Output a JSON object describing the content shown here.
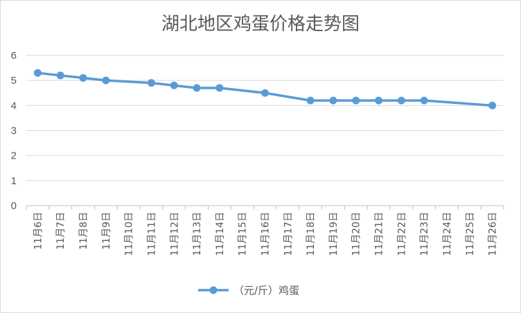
{
  "chart_data": {
    "type": "line",
    "title": "湖北地区鸡蛋价格走势图",
    "xlabel": "",
    "ylabel": "",
    "ylim": [
      0,
      6
    ],
    "yticks": [
      "0",
      "1",
      "2",
      "3",
      "4",
      "5",
      "6"
    ],
    "grid": true,
    "legend_position": "bottom",
    "categories": [
      "11月6日",
      "11月7日",
      "11月8日",
      "11月9日",
      "11月10日",
      "11月11日",
      "11月12日",
      "11月13日",
      "11月14日",
      "11月15日",
      "11月16日",
      "11月17日",
      "11月18日",
      "11月19日",
      "11月20日",
      "11月21日",
      "11月22日",
      "11月23日",
      "11月24日",
      "11月25日",
      "11月26日"
    ],
    "series": [
      {
        "name": "（元/斤）鸡蛋",
        "color": "#5b9bd5",
        "values": [
          5.3,
          5.2,
          5.1,
          5.0,
          null,
          4.9,
          4.8,
          4.7,
          4.7,
          null,
          4.5,
          null,
          4.2,
          4.2,
          4.2,
          4.2,
          4.2,
          4.2,
          null,
          null,
          4.0
        ]
      }
    ]
  }
}
